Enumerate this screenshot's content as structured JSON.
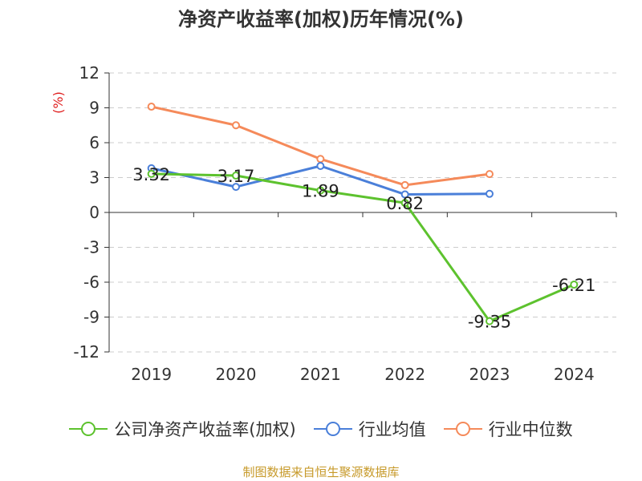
{
  "chart_data": {
    "type": "line",
    "title": "净资产收益率(加权)历年情况(%)",
    "ylabel": "(%)",
    "xlabel": "",
    "categories": [
      "2019",
      "2020",
      "2021",
      "2022",
      "2023",
      "2024"
    ],
    "ylim": [
      -12,
      12
    ],
    "yticks": [
      12,
      9,
      6,
      3,
      0,
      -3,
      -6,
      -9,
      -12
    ],
    "grid": true,
    "legend_position": "bottom",
    "series": [
      {
        "name": "公司净资产收益率(加权)",
        "color": "#5dc22e",
        "values": [
          3.32,
          3.17,
          1.89,
          0.82,
          -9.35,
          -6.21
        ],
        "labels": [
          "3.32",
          "3.17",
          "1.89",
          "0.82",
          "-9.35",
          "-6.21"
        ]
      },
      {
        "name": "行业均值",
        "color": "#4a7fd9",
        "values": [
          3.8,
          2.2,
          4.0,
          1.55,
          1.6,
          null
        ]
      },
      {
        "name": "行业中位数",
        "color": "#f58a5a",
        "values": [
          9.1,
          7.5,
          4.6,
          2.35,
          3.3,
          null
        ]
      }
    ]
  },
  "footer": {
    "source": "制图数据来自恒生聚源数据库"
  }
}
